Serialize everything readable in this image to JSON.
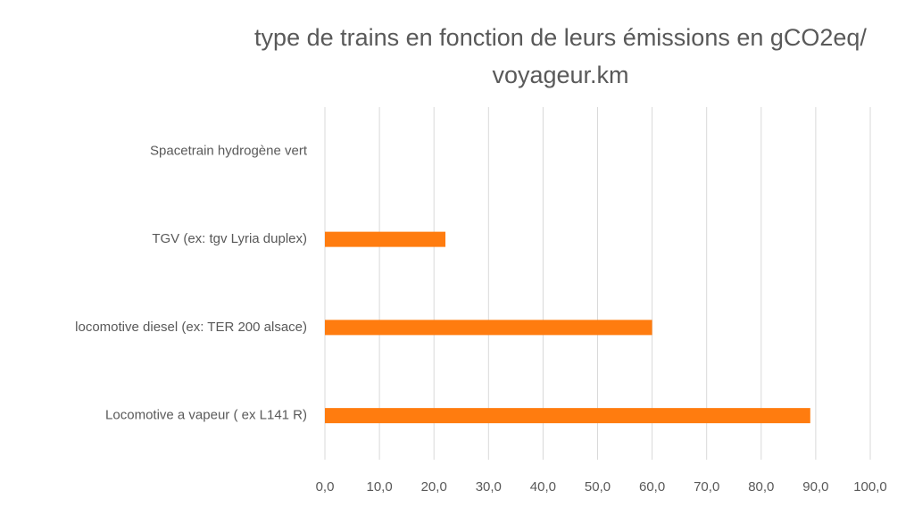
{
  "chart_data": {
    "type": "bar",
    "orientation": "horizontal",
    "title": [
      "type de trains en fonction de leurs émissions en gCO2eq/",
      "voyageur.km"
    ],
    "categories": [
      "Spacetrain hydrogène vert",
      "TGV (ex: tgv Lyria duplex)",
      "locomotive diesel (ex: TER 200 alsace)",
      "Locomotive a vapeur ( ex L141 R)"
    ],
    "values": [
      0,
      22.1,
      60,
      89
    ],
    "color": "#ff7c0f",
    "xlim": [
      0,
      100
    ],
    "xticks": [
      {
        "value": 0,
        "label": "0,0"
      },
      {
        "value": 10,
        "label": "10,0"
      },
      {
        "value": 20,
        "label": "20,0"
      },
      {
        "value": 30,
        "label": "30,0"
      },
      {
        "value": 40,
        "label": "40,0"
      },
      {
        "value": 50,
        "label": "50,0"
      },
      {
        "value": 60,
        "label": "60,0"
      },
      {
        "value": 70,
        "label": "70,0"
      },
      {
        "value": 80,
        "label": "80,0"
      },
      {
        "value": 90,
        "label": "90,0"
      },
      {
        "value": 100,
        "label": "100,0"
      }
    ],
    "grid": true
  }
}
